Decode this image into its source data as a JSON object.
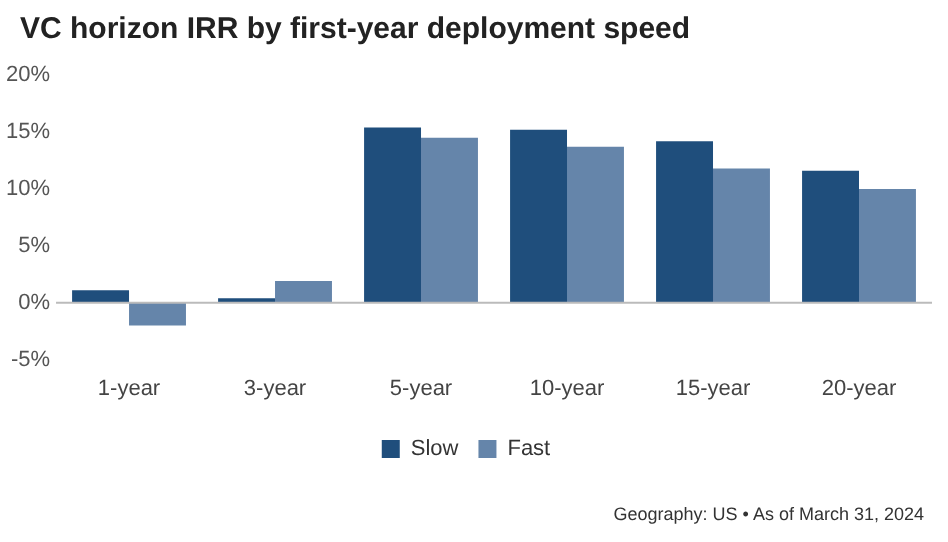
{
  "chart_data": {
    "type": "bar",
    "title": "VC horizon IRR by first-year deployment speed",
    "categories": [
      "1-year",
      "3-year",
      "5-year",
      "10-year",
      "15-year",
      "20-year"
    ],
    "series": [
      {
        "name": "Slow",
        "color": "#1f4e7c",
        "values": [
          1.1,
          0.4,
          15.4,
          15.2,
          14.2,
          11.6
        ]
      },
      {
        "name": "Fast",
        "color": "#6585aa",
        "values": [
          -2.0,
          1.9,
          14.5,
          13.7,
          11.8,
          10.0
        ]
      }
    ],
    "ylim": [
      -5,
      20
    ],
    "yticks": [
      {
        "value": -5,
        "label": "-5%"
      },
      {
        "value": 0,
        "label": "0%"
      },
      {
        "value": 5,
        "label": "5%"
      },
      {
        "value": 10,
        "label": "10%"
      },
      {
        "value": 15,
        "label": "15%"
      },
      {
        "value": 20,
        "label": "20%"
      }
    ],
    "grid": false,
    "legend": "bottom",
    "ref_lines": [
      {
        "axis": "y",
        "value": 0,
        "color": "#bbbbbb"
      }
    ],
    "annotations": [
      "Geography: US • As of March 31, 2024"
    ]
  }
}
